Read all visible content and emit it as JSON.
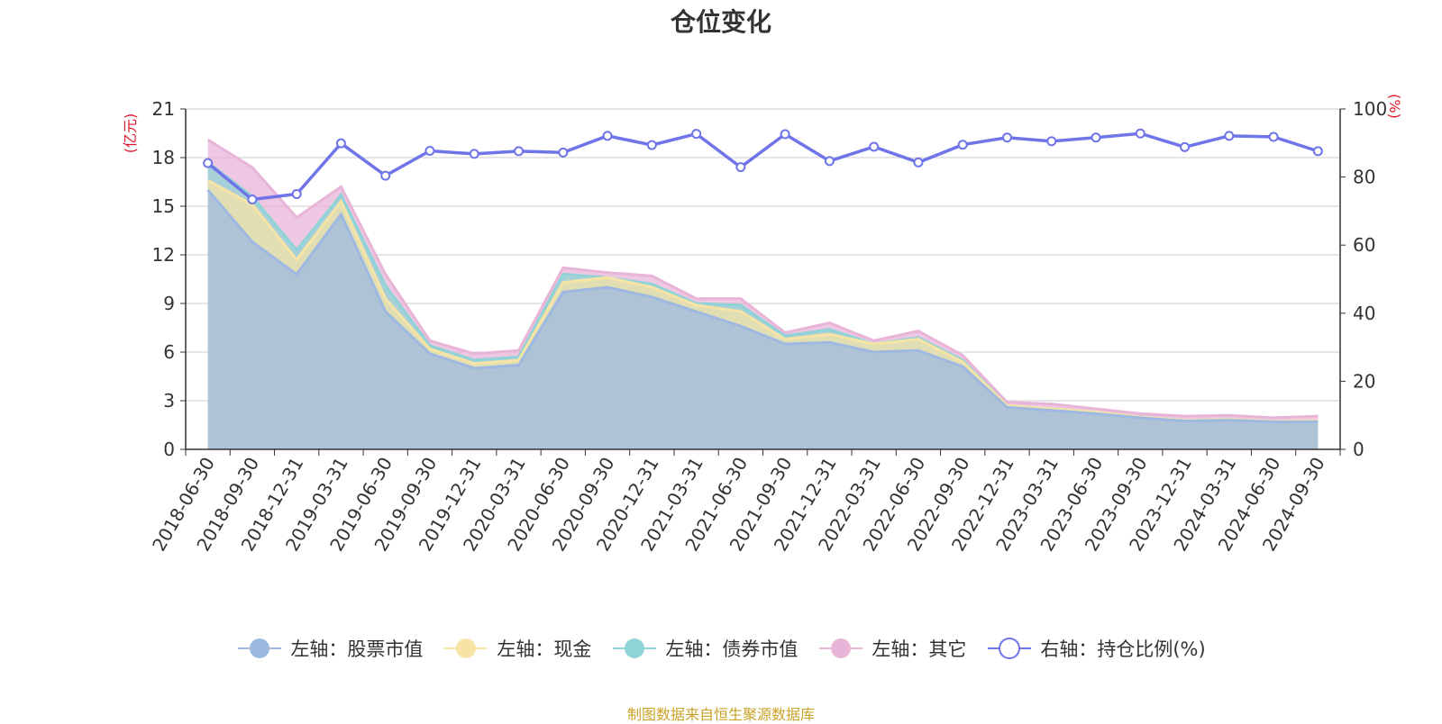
{
  "chart_data": {
    "type": "area",
    "title": "仓位变化",
    "left_axis_unit": "(亿元)",
    "right_axis_unit": "(%)",
    "categories": [
      "2018-06-30",
      "2018-09-30",
      "2018-12-31",
      "2019-03-31",
      "2019-06-30",
      "2019-09-30",
      "2019-12-31",
      "2020-03-31",
      "2020-06-30",
      "2020-09-30",
      "2020-12-31",
      "2021-03-31",
      "2021-06-30",
      "2021-09-30",
      "2021-12-31",
      "2022-03-31",
      "2022-06-30",
      "2022-09-30",
      "2022-12-31",
      "2023-03-31",
      "2023-06-30",
      "2023-09-30",
      "2023-12-31",
      "2024-03-31",
      "2024-06-30",
      "2024-09-30"
    ],
    "left_ylim": [
      0,
      21
    ],
    "left_ticks": [
      "0",
      "3",
      "6",
      "9",
      "12",
      "15",
      "18",
      "21"
    ],
    "right_ylim": [
      0,
      100
    ],
    "right_ticks": [
      "0",
      "20",
      "40",
      "60",
      "80",
      "100"
    ],
    "series": [
      {
        "name": "左轴：股票市值",
        "axis": "left",
        "stack": true,
        "color": "#9db9e2",
        "values": [
          16.0,
          12.8,
          10.8,
          14.5,
          8.5,
          5.9,
          5.0,
          5.2,
          9.7,
          10.0,
          9.4,
          8.5,
          7.6,
          6.5,
          6.6,
          6.0,
          6.1,
          5.1,
          2.6,
          2.4,
          2.2,
          1.95,
          1.75,
          1.8,
          1.7,
          1.7
        ]
      },
      {
        "name": "左轴：现金",
        "axis": "left",
        "stack": true,
        "color": "#f6e3a6",
        "values": [
          0.6,
          2.3,
          0.9,
          0.8,
          0.8,
          0.3,
          0.3,
          0.3,
          0.6,
          0.6,
          0.6,
          0.4,
          0.9,
          0.3,
          0.5,
          0.5,
          0.7,
          0.3,
          0.1,
          0.1,
          0.1,
          0.05,
          0.05,
          0.05,
          0.05,
          0.05
        ]
      },
      {
        "name": "左轴：债券市值",
        "axis": "left",
        "stack": true,
        "color": "#8fd3d6",
        "values": [
          1.1,
          0.5,
          0.6,
          0.4,
          0.8,
          0.2,
          0.2,
          0.2,
          0.5,
          0.0,
          0.2,
          0.1,
          0.4,
          0.2,
          0.3,
          0.0,
          0.1,
          0.1,
          0.0,
          0.0,
          0.0,
          0.0,
          0.0,
          0.0,
          0.0,
          0.0
        ]
      },
      {
        "name": "左轴：其它",
        "axis": "left",
        "stack": true,
        "color": "#e8b4d8",
        "values": [
          1.4,
          1.8,
          2.0,
          0.5,
          0.7,
          0.3,
          0.4,
          0.4,
          0.4,
          0.3,
          0.5,
          0.3,
          0.4,
          0.2,
          0.4,
          0.2,
          0.4,
          0.3,
          0.2,
          0.3,
          0.2,
          0.2,
          0.25,
          0.25,
          0.2,
          0.3
        ]
      },
      {
        "name": "右轴：持仓比例(%)",
        "axis": "right",
        "type": "line",
        "color": "#6f74e8",
        "values": [
          84.1,
          73.4,
          75.0,
          89.9,
          80.4,
          87.7,
          86.8,
          87.6,
          87.2,
          92.1,
          89.4,
          92.7,
          82.9,
          92.6,
          84.7,
          88.9,
          84.3,
          89.5,
          91.6,
          90.5,
          91.6,
          92.8,
          88.8,
          92.1,
          91.8,
          87.6
        ]
      }
    ],
    "source_note": "制图数据来自恒生聚源数据库"
  }
}
